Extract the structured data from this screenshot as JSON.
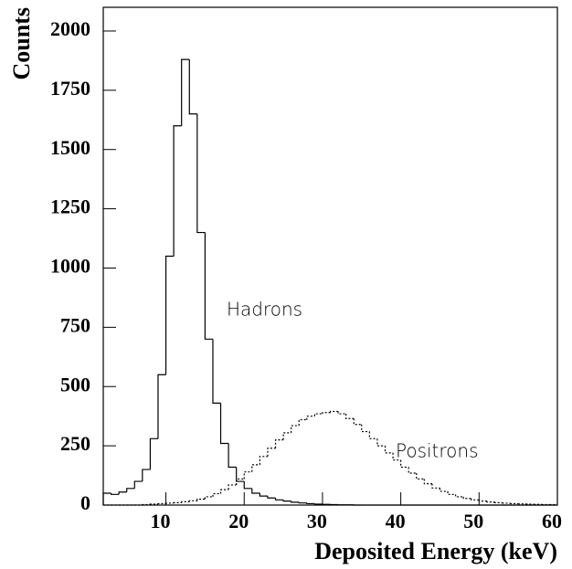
{
  "chart_data": {
    "type": "histogram",
    "xlabel": "Deposited Energy (keV)",
    "ylabel": "Counts",
    "bins": [
      2,
      3,
      4,
      5,
      6,
      7,
      8,
      9,
      10,
      11,
      12,
      13,
      14,
      15,
      16,
      17,
      18,
      19,
      20,
      21,
      22,
      23,
      24,
      25,
      26,
      27,
      28,
      29,
      30,
      31,
      32,
      33,
      34,
      35,
      36,
      37,
      38,
      39,
      40,
      41,
      42,
      43,
      44,
      45,
      46,
      47,
      48,
      49,
      50,
      51,
      52,
      53,
      54,
      55,
      56,
      57,
      58,
      59,
      60
    ],
    "series": [
      {
        "name": "Hadrons",
        "color": "#000000",
        "style": "solid",
        "values": [
          50,
          45,
          55,
          70,
          100,
          150,
          280,
          550,
          1050,
          1600,
          1880,
          1650,
          1150,
          700,
          430,
          260,
          160,
          100,
          70,
          50,
          38,
          30,
          22,
          17,
          12,
          9,
          6,
          4,
          3,
          2,
          1,
          1,
          0,
          0,
          0,
          0,
          0,
          0,
          0,
          0,
          0,
          0,
          0,
          0,
          0,
          0,
          0,
          0,
          0,
          0,
          0,
          0,
          0,
          0,
          0,
          0,
          0,
          0
        ]
      },
      {
        "name": "Positrons",
        "color": "#000000",
        "style": "dotted",
        "values": [
          0,
          0,
          0,
          0,
          0,
          2,
          4,
          6,
          8,
          10,
          14,
          18,
          25,
          35,
          48,
          65,
          85,
          110,
          140,
          170,
          205,
          240,
          275,
          305,
          335,
          360,
          375,
          385,
          390,
          395,
          385,
          365,
          340,
          310,
          280,
          250,
          220,
          190,
          160,
          135,
          110,
          90,
          72,
          58,
          45,
          35,
          28,
          22,
          17,
          13,
          10,
          8,
          6,
          5,
          4,
          3,
          2,
          2
        ]
      }
    ],
    "xlim": [
      2,
      60
    ],
    "xticks": [
      10,
      20,
      30,
      40,
      50,
      60
    ],
    "ylim": [
      0,
      2100
    ],
    "yticks": [
      0,
      250,
      500,
      750,
      1000,
      1250,
      1500,
      1750,
      2000
    ]
  }
}
